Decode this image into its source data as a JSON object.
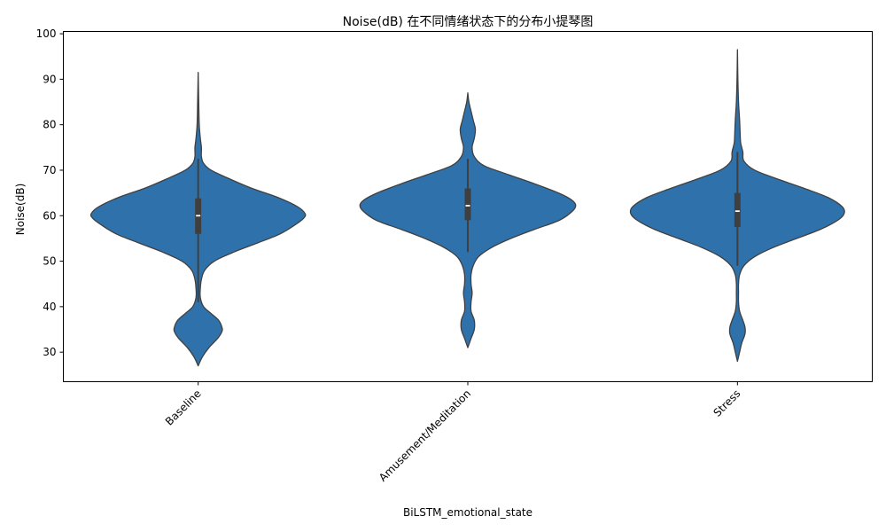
{
  "chart_data": {
    "type": "violin",
    "title": "Noise(dB) 在不同情绪状态下的分布小提琴图",
    "xlabel": "BiLSTM_emotional_state",
    "ylabel": "Noise(dB)",
    "categories": [
      "Baseline",
      "Amusement/Meditation",
      "Stress"
    ],
    "ylim": [
      23.5,
      100.5
    ],
    "yticks": [
      30,
      40,
      50,
      60,
      70,
      80,
      90,
      100
    ],
    "grid": false,
    "legend": "none",
    "x_tick_rotation": 45,
    "color": "#2f72ab",
    "edge_color": "#3f3f3f",
    "violins": [
      {
        "category": "Baseline",
        "min": 27,
        "max": 91.5,
        "q1": 56,
        "median": 60,
        "q3": 63.8,
        "whisker_low": 41,
        "whisker_high": 72.5,
        "density": [
          [
            27,
            0
          ],
          [
            29,
            0.04
          ],
          [
            31,
            0.1
          ],
          [
            33,
            0.18
          ],
          [
            34.5,
            0.22
          ],
          [
            35.5,
            0.22
          ],
          [
            37,
            0.19
          ],
          [
            38.5,
            0.12
          ],
          [
            40,
            0.05
          ],
          [
            42,
            0.02
          ],
          [
            44,
            0.02
          ],
          [
            46,
            0.03
          ],
          [
            48,
            0.06
          ],
          [
            50,
            0.15
          ],
          [
            52,
            0.33
          ],
          [
            54,
            0.55
          ],
          [
            56,
            0.76
          ],
          [
            58,
            0.9
          ],
          [
            59.5,
            0.98
          ],
          [
            60.5,
            0.99
          ],
          [
            62,
            0.92
          ],
          [
            64,
            0.74
          ],
          [
            66,
            0.5
          ],
          [
            68,
            0.3
          ],
          [
            70,
            0.12
          ],
          [
            71.5,
            0.05
          ],
          [
            73,
            0.03
          ],
          [
            75,
            0.03
          ],
          [
            77,
            0.02
          ],
          [
            80,
            0.01
          ],
          [
            85,
            0.005
          ],
          [
            91.5,
            0
          ]
        ]
      },
      {
        "category": "Amusement/Meditation",
        "min": 31,
        "max": 87,
        "q1": 59,
        "median": 62.2,
        "q3": 66,
        "whisker_low": 52,
        "whisker_high": 72.5,
        "density": [
          [
            31,
            0
          ],
          [
            33,
            0.03
          ],
          [
            35,
            0.06
          ],
          [
            37,
            0.06
          ],
          [
            39,
            0.03
          ],
          [
            41,
            0.03
          ],
          [
            43,
            0.04
          ],
          [
            45,
            0.03
          ],
          [
            47,
            0.03
          ],
          [
            49,
            0.05
          ],
          [
            51,
            0.1
          ],
          [
            53,
            0.22
          ],
          [
            55,
            0.4
          ],
          [
            57,
            0.62
          ],
          [
            59,
            0.85
          ],
          [
            61,
            0.97
          ],
          [
            62.3,
            1.0
          ],
          [
            63.5,
            0.96
          ],
          [
            65,
            0.84
          ],
          [
            67,
            0.62
          ],
          [
            69,
            0.38
          ],
          [
            71,
            0.15
          ],
          [
            73,
            0.06
          ],
          [
            75,
            0.04
          ],
          [
            77,
            0.06
          ],
          [
            79,
            0.07
          ],
          [
            81,
            0.05
          ],
          [
            83,
            0.03
          ],
          [
            85,
            0.01
          ],
          [
            87,
            0
          ]
        ]
      },
      {
        "category": "Stress",
        "min": 28,
        "max": 96.5,
        "q1": 57.5,
        "median": 61,
        "q3": 65,
        "whisker_low": 49,
        "whisker_high": 74,
        "density": [
          [
            28,
            0
          ],
          [
            30,
            0.02
          ],
          [
            32,
            0.04
          ],
          [
            34,
            0.07
          ],
          [
            35.5,
            0.07
          ],
          [
            37,
            0.05
          ],
          [
            39,
            0.02
          ],
          [
            41,
            0.01
          ],
          [
            43,
            0.01
          ],
          [
            45,
            0.01
          ],
          [
            47,
            0.02
          ],
          [
            49,
            0.06
          ],
          [
            51,
            0.16
          ],
          [
            53,
            0.33
          ],
          [
            55,
            0.55
          ],
          [
            57,
            0.77
          ],
          [
            59,
            0.93
          ],
          [
            60.5,
            0.99
          ],
          [
            62,
            0.97
          ],
          [
            64,
            0.84
          ],
          [
            66,
            0.62
          ],
          [
            68,
            0.38
          ],
          [
            70,
            0.16
          ],
          [
            72,
            0.06
          ],
          [
            74,
            0.05
          ],
          [
            76,
            0.03
          ],
          [
            78,
            0.025
          ],
          [
            81,
            0.02
          ],
          [
            85,
            0.01
          ],
          [
            90,
            0.004
          ],
          [
            96.5,
            0
          ]
        ]
      }
    ]
  }
}
